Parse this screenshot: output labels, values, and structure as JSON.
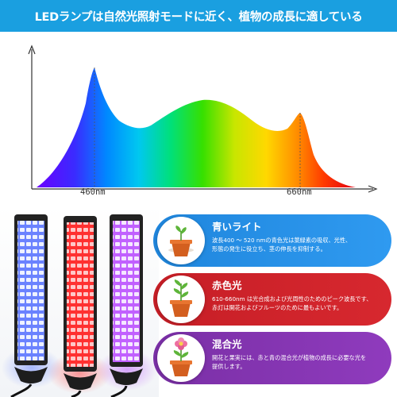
{
  "banner": {
    "text": "LEDランプは自然光照射モードに近く、植物の成長に適している",
    "color": "#1a9fe0"
  },
  "spectrum": {
    "tick_labels": [
      "460nm",
      "660nm"
    ],
    "arrows": [
      "up-arrow",
      "right-arrow"
    ]
  },
  "lamps": {
    "colors": [
      "blue",
      "red",
      "purple"
    ]
  },
  "cards": [
    {
      "id": "blue",
      "title": "青いライト",
      "desc_lines": [
        "波長400 ～ 520 nmの青色光は葉緑素の吸収、光性、",
        "形態の発生に役立ち、茎の伸長を抑制する。"
      ],
      "color": "#1f86dd",
      "icon": "seedling-pot-icon"
    },
    {
      "id": "red",
      "title": "赤色光",
      "desc_lines": [
        "610-660nm は光合成および光周性のためのピーク波長です、",
        "赤灯は開花およびフルーツのために最もよいです。"
      ],
      "color": "#c61e26",
      "icon": "sprout-pot-icon"
    },
    {
      "id": "purple",
      "title": "混合光",
      "desc_lines": [
        "開花と果実には、赤と青の混合光が植物の成長に必要な光を",
        "提供します。"
      ],
      "color": "#7a2fa6",
      "icon": "flower-pot-icon"
    }
  ]
}
